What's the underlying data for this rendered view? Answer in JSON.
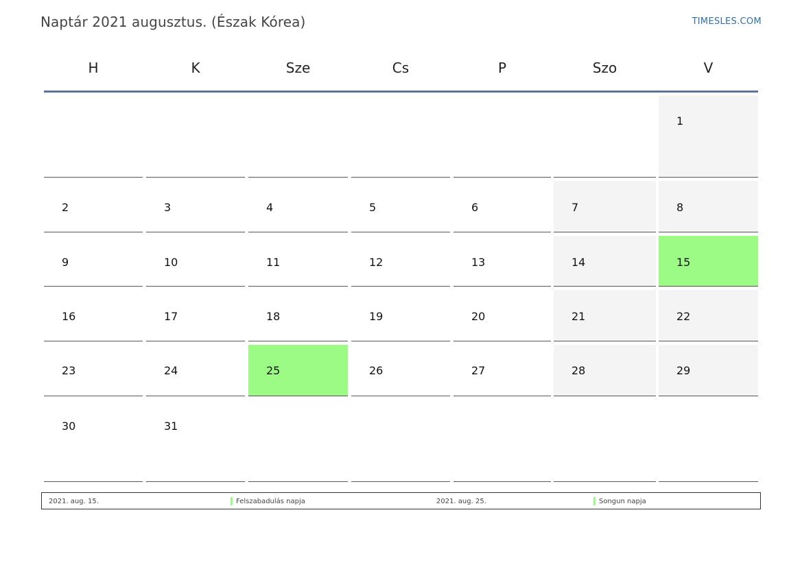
{
  "title": "Naptár 2021 augusztus. (Észak Kórea)",
  "brand": "TIMESLES.COM",
  "colors": {
    "holiday": "#9cfb85",
    "weekend": "#f4f4f4",
    "header_rule": "#5a7598"
  },
  "weekdays": [
    "H",
    "K",
    "Sze",
    "Cs",
    "P",
    "Szo",
    "V"
  ],
  "weeks": [
    [
      "",
      "",
      "",
      "",
      "",
      "",
      "1"
    ],
    [
      "2",
      "3",
      "4",
      "5",
      "6",
      "7",
      "8"
    ],
    [
      "9",
      "10",
      "11",
      "12",
      "13",
      "14",
      "15"
    ],
    [
      "16",
      "17",
      "18",
      "19",
      "20",
      "21",
      "22"
    ],
    [
      "23",
      "24",
      "25",
      "26",
      "27",
      "28",
      "29"
    ],
    [
      "30",
      "31",
      "",
      "",
      "",
      "",
      ""
    ]
  ],
  "holidays": [
    "15",
    "25"
  ],
  "legend": [
    {
      "date": "2021. aug. 15.",
      "name": "Felszabadulás napja"
    },
    {
      "date": "2021. aug. 25.",
      "name": "Songun napja"
    }
  ]
}
